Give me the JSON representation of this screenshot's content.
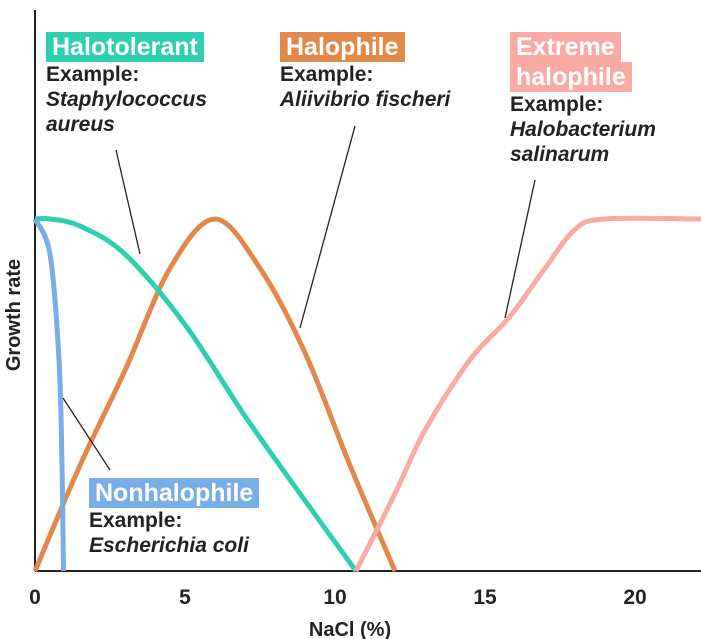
{
  "chart_data": {
    "type": "line",
    "title": "",
    "xlabel": "NaCl (%)",
    "ylabel": "Growth rate",
    "xlim": [
      0,
      22.2
    ],
    "ylim": [
      0,
      1
    ],
    "xticks": [
      "0",
      "5",
      "10",
      "15",
      "20"
    ],
    "grid": false,
    "series": [
      {
        "name": "Nonhalophile",
        "example_label": "Example:",
        "example": "Escherichia coli",
        "color": "#78aee8",
        "x": [
          0,
          0.5,
          0.8,
          0.9,
          0.95
        ],
        "y": [
          1,
          0.9,
          0.6,
          0.3,
          0
        ]
      },
      {
        "name": "Halotolerant",
        "example_label": "Example:",
        "example": [
          "Staphylococcus",
          "aureus"
        ],
        "color": "#2ecfae",
        "x": [
          0,
          0.5,
          1.5,
          3,
          5,
          7,
          9,
          10.7
        ],
        "y": [
          1,
          1.0,
          0.98,
          0.9,
          0.7,
          0.44,
          0.2,
          0
        ]
      },
      {
        "name": "Halophile",
        "example_label": "Example:",
        "example": "Aliivibrio fischeri",
        "color": "#e0894a",
        "x": [
          0,
          1.5,
          3,
          4.5,
          6,
          7.5,
          9,
          10.5,
          12
        ],
        "y": [
          0,
          0.3,
          0.57,
          0.86,
          1,
          0.86,
          0.62,
          0.3,
          0
        ]
      },
      {
        "name": "Extreme halophile",
        "name_lines": [
          "Extreme",
          "halophile"
        ],
        "example_label": "Example:",
        "example": [
          "Halobacterium",
          "salinarum"
        ],
        "color": "#f9aaa5",
        "x": [
          10.7,
          12,
          13,
          14.5,
          15.8,
          17,
          18,
          19,
          22.2
        ],
        "y": [
          0,
          0.22,
          0.4,
          0.6,
          0.72,
          0.86,
          0.97,
          1,
          1
        ]
      }
    ]
  }
}
